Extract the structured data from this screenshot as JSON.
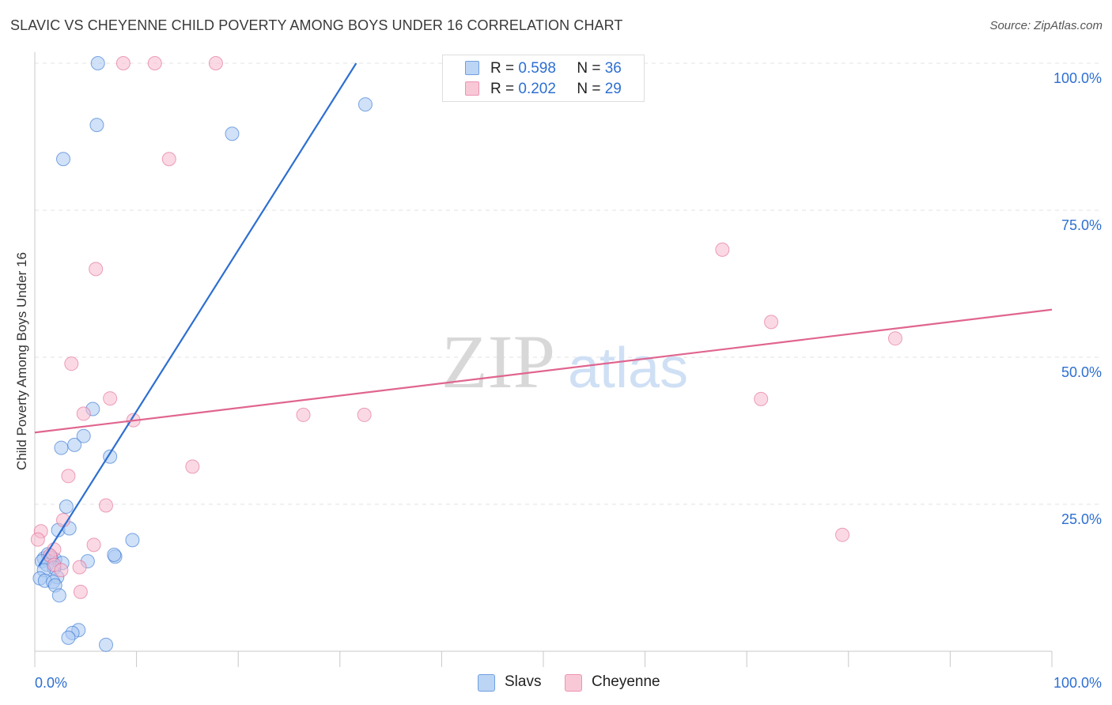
{
  "header": {
    "title": "SLAVIC VS CHEYENNE CHILD POVERTY AMONG BOYS UNDER 16 CORRELATION CHART",
    "source": "Source: ZipAtlas.com"
  },
  "watermark": {
    "zip": "ZIP",
    "atlas": "atlas"
  },
  "legend": {
    "rows": [
      {
        "r_label": "R =",
        "r_value": "0.598",
        "n_label": "N =",
        "n_value": "36"
      },
      {
        "r_label": "R =",
        "r_value": "0.202",
        "n_label": "N =",
        "n_value": "29"
      }
    ]
  },
  "chart_data": {
    "type": "scatter",
    "title": "SLAVIC VS CHEYENNE CHILD POVERTY AMONG BOYS UNDER 16 CORRELATION CHART",
    "xlabel": "",
    "ylabel": "Child Poverty Among Boys Under 16",
    "xlim": [
      0,
      100
    ],
    "ylim": [
      0,
      100
    ],
    "x_tick_labels": {
      "min": "0.0%",
      "max": "100.0%"
    },
    "y_ticks": [
      {
        "value": 25,
        "label": "25.0%"
      },
      {
        "value": 50,
        "label": "50.0%"
      },
      {
        "value": 75,
        "label": "75.0%"
      },
      {
        "value": 100,
        "label": "100.0%"
      }
    ],
    "grid": true,
    "series": [
      {
        "name": "Slavs",
        "color": "#2d6fd1",
        "fill": "#a9c8f2",
        "r": 0.598,
        "n": 36,
        "trend": {
          "x": [
            0.4,
            31.6
          ],
          "y": [
            14.5,
            100
          ]
        },
        "points": [
          [
            6.2,
            100
          ],
          [
            6.1,
            89.5
          ],
          [
            2.8,
            83.7
          ],
          [
            19.4,
            88
          ],
          [
            32.5,
            93
          ],
          [
            5.7,
            41.2
          ],
          [
            2.6,
            34.6
          ],
          [
            3.9,
            35.1
          ],
          [
            4.8,
            36.6
          ],
          [
            7.4,
            33.1
          ],
          [
            3.1,
            24.6
          ],
          [
            2.3,
            20.6
          ],
          [
            3.4,
            20.9
          ],
          [
            9.6,
            18.9
          ],
          [
            7.9,
            16.1
          ],
          [
            7.8,
            16.4
          ],
          [
            5.2,
            15.3
          ],
          [
            2.0,
            15.6
          ],
          [
            0.9,
            15.8
          ],
          [
            1.3,
            16.5
          ],
          [
            1.6,
            15.9
          ],
          [
            0.7,
            15.3
          ],
          [
            1.2,
            14.7
          ],
          [
            2.7,
            15.0
          ],
          [
            1.9,
            14.2
          ],
          [
            0.9,
            13.8
          ],
          [
            0.5,
            12.4
          ],
          [
            1.0,
            12.0
          ],
          [
            2.2,
            12.6
          ],
          [
            1.8,
            11.8
          ],
          [
            2.0,
            11.2
          ],
          [
            2.4,
            9.5
          ],
          [
            4.3,
            3.6
          ],
          [
            3.7,
            3.1
          ],
          [
            3.3,
            2.3
          ],
          [
            7.0,
            1.1
          ]
        ]
      },
      {
        "name": "Cheyenne",
        "color": "#e0658f",
        "fill": "#f7b9cd",
        "r": 0.202,
        "n": 29,
        "trend": {
          "x": [
            0,
            100
          ],
          "y": [
            37.2,
            58.1
          ]
        },
        "points": [
          [
            8.7,
            100
          ],
          [
            11.8,
            100
          ],
          [
            17.8,
            100
          ],
          [
            13.2,
            83.7
          ],
          [
            6.0,
            65.0
          ],
          [
            3.6,
            48.9
          ],
          [
            7.4,
            43.0
          ],
          [
            4.8,
            40.4
          ],
          [
            9.7,
            39.3
          ],
          [
            26.4,
            40.2
          ],
          [
            32.4,
            40.2
          ],
          [
            67.6,
            68.3
          ],
          [
            72.4,
            56.0
          ],
          [
            84.6,
            53.2
          ],
          [
            71.4,
            42.9
          ],
          [
            3.3,
            29.8
          ],
          [
            15.5,
            31.4
          ],
          [
            7.0,
            24.8
          ],
          [
            2.8,
            22.3
          ],
          [
            0.6,
            20.4
          ],
          [
            0.3,
            19.0
          ],
          [
            1.9,
            17.3
          ],
          [
            5.8,
            18.1
          ],
          [
            1.5,
            16.3
          ],
          [
            1.9,
            14.7
          ],
          [
            2.6,
            13.8
          ],
          [
            4.4,
            14.3
          ],
          [
            4.5,
            10.1
          ],
          [
            79.4,
            19.8
          ]
        ]
      }
    ]
  }
}
